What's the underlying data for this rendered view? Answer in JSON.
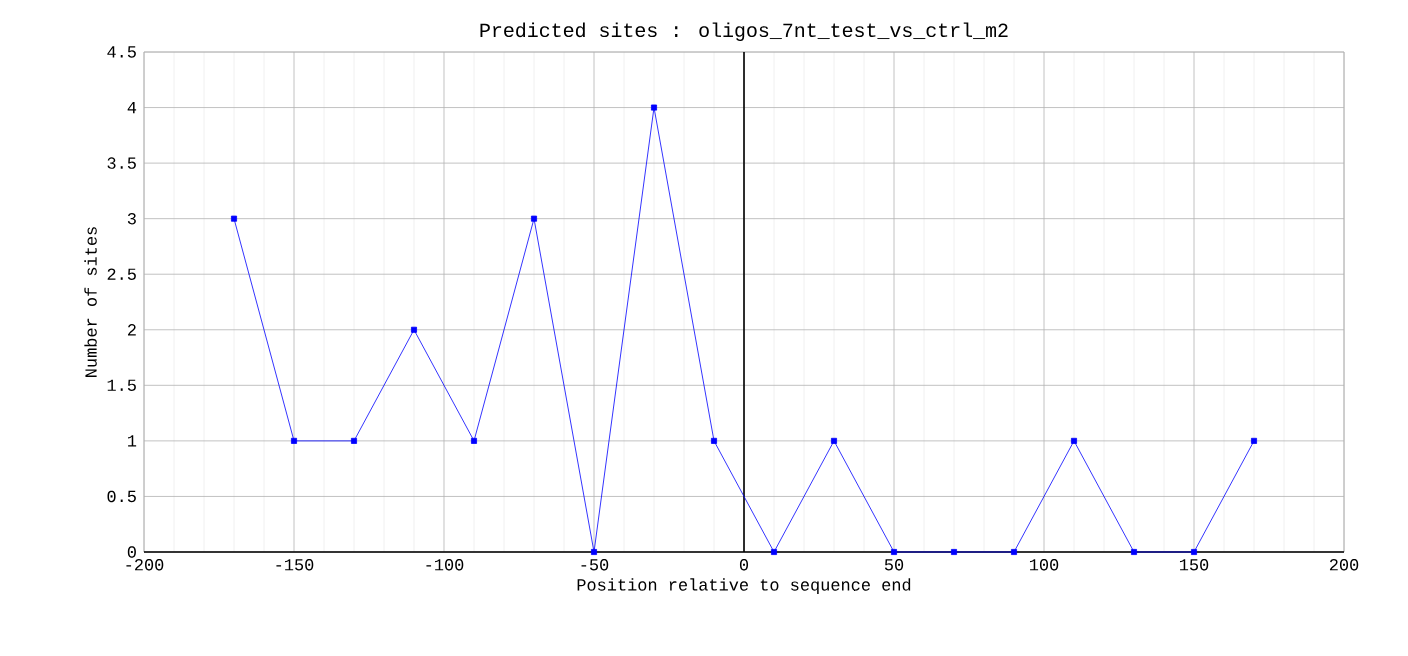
{
  "chart_data": {
    "type": "line",
    "title": "Predicted sites : oligos_7nt_test_vs_ctrl_m2",
    "xlabel": "Position relative to sequence end",
    "ylabel": "Number of sites",
    "x": [
      -170,
      -150,
      -130,
      -110,
      -90,
      -70,
      -50,
      -30,
      -10,
      10,
      30,
      50,
      70,
      90,
      110,
      130,
      150,
      170
    ],
    "series": [
      {
        "color": "#0000ff",
        "values": [
          3,
          1,
          1,
          2,
          1,
          3,
          0,
          4,
          1,
          0,
          1,
          0,
          0,
          0,
          1,
          0,
          0,
          1
        ]
      }
    ],
    "xlim": [
      -200,
      200
    ],
    "xticks": [
      -200,
      -150,
      -100,
      -50,
      0,
      50,
      100,
      150,
      200
    ],
    "ylim": [
      0,
      4.5
    ],
    "yticks": [
      0,
      0.5,
      1,
      1.5,
      2,
      2.5,
      3,
      3.5,
      4,
      4.5
    ],
    "grid": true,
    "marker": "square",
    "line_style": "solid",
    "ref_lines": [
      {
        "axis": "x",
        "value": 0,
        "color": "#000000"
      }
    ]
  }
}
